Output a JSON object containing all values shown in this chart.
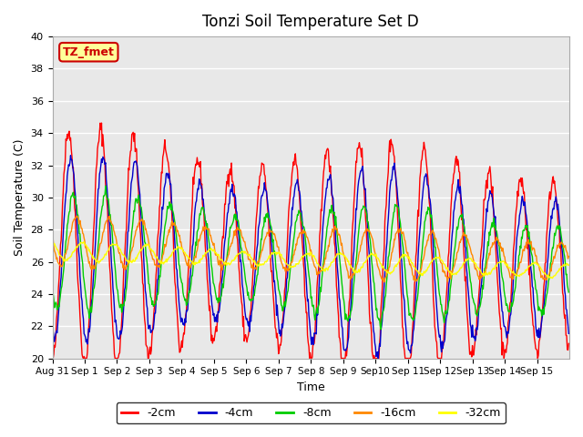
{
  "title": "Tonzi Soil Temperature Set D",
  "xlabel": "Time",
  "ylabel": "Soil Temperature (C)",
  "ylim": [
    20,
    40
  ],
  "label_box_text": "TZ_fmet",
  "background_color": "#e8e8e8",
  "lines": [
    {
      "label": "-2cm",
      "color": "#ff0000"
    },
    {
      "label": "-4cm",
      "color": "#0000cc"
    },
    {
      "label": "-8cm",
      "color": "#00cc00"
    },
    {
      "label": "-16cm",
      "color": "#ff8800"
    },
    {
      "label": "-32cm",
      "color": "#ffff00"
    }
  ],
  "xtick_labels": [
    "Aug 31",
    "Sep 1",
    "Sep 2",
    "Sep 3",
    "Sep 4",
    "Sep 5",
    "Sep 6",
    "Sep 7",
    "Sep 8",
    "Sep 9",
    "Sep10",
    "Sep 11",
    "Sep 12",
    "Sep 13",
    "Sep 14",
    "Sep 15"
  ],
  "n_days": 16,
  "points_per_day": 48
}
